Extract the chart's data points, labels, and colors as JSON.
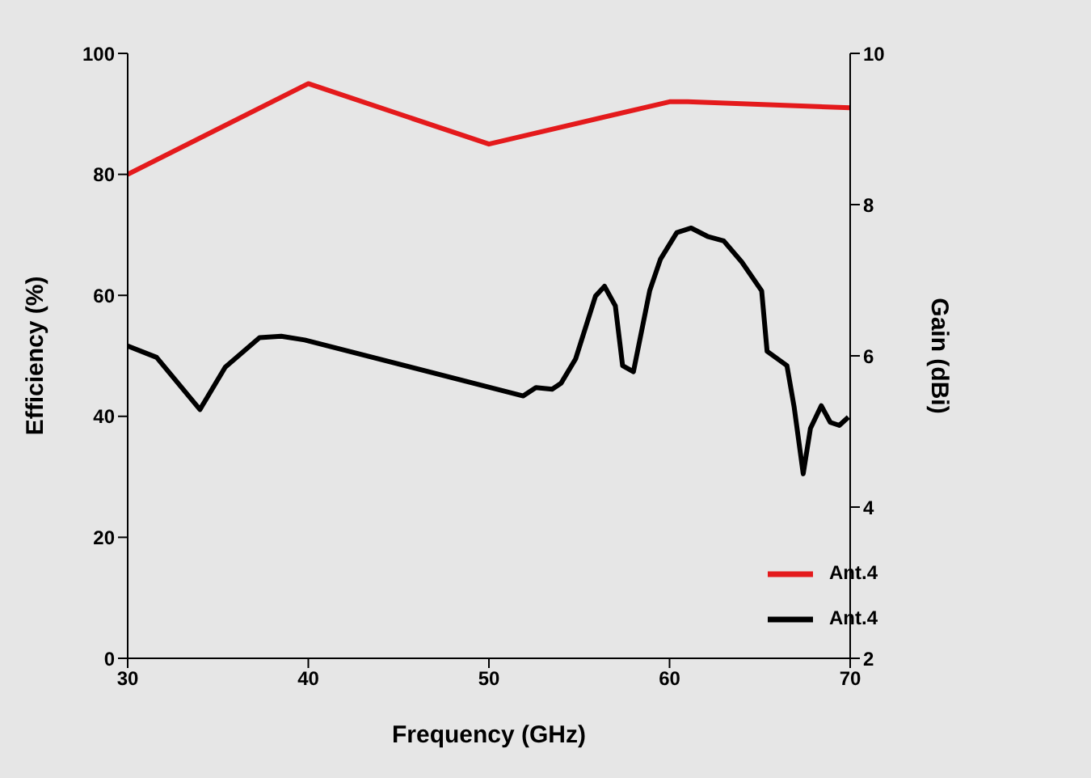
{
  "chart_data": {
    "type": "line",
    "xlabel": "Frequency (GHz)",
    "ylabel": "Efficiency (%)",
    "y2label": "Gain (dBi)",
    "xlim": [
      30,
      70
    ],
    "xticks": [
      30,
      40,
      50,
      60,
      70
    ],
    "ylim": [
      0,
      100
    ],
    "yticks": [
      0,
      20,
      40,
      60,
      80,
      100
    ],
    "y2lim": [
      2,
      10
    ],
    "y2ticks": [
      2,
      4,
      6,
      8,
      10
    ],
    "grid": false,
    "legend": "bottom right",
    "marker": "none",
    "line_style": "solid",
    "series": [
      {
        "name": "Ant.4",
        "color": "#e41a1c",
        "x": [
          30,
          40,
          50,
          60,
          61,
          70
        ],
        "values": [
          80,
          95,
          85,
          92,
          92,
          91
        ]
      },
      {
        "name": "Ant.4",
        "color": "#000000",
        "axis": "y2",
        "x": [
          30,
          31.6,
          34.0,
          35.4,
          37.3,
          38.5,
          39.8,
          51.9,
          52.6,
          53.5,
          54.0,
          54.8,
          55.9,
          56.4,
          57.0,
          57.4,
          58.0,
          58.9,
          59.5,
          60.4,
          61.2,
          62.1,
          63.0,
          64.0,
          65.1,
          65.4,
          66.5,
          66.9,
          67.4,
          67.8,
          68.4,
          68.9,
          69.4,
          69.9
        ],
        "values": [
          6.13,
          5.98,
          5.29,
          5.85,
          6.24,
          6.26,
          6.21,
          5.47,
          5.58,
          5.56,
          5.64,
          5.96,
          6.79,
          6.92,
          6.66,
          5.87,
          5.79,
          6.86,
          7.28,
          7.63,
          7.69,
          7.58,
          7.52,
          7.24,
          6.86,
          6.06,
          5.87,
          5.32,
          4.44,
          5.04,
          5.34,
          5.12,
          5.08,
          5.19
        ]
      }
    ]
  }
}
